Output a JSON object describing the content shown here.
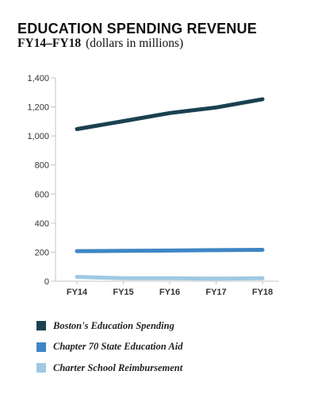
{
  "header": {
    "title": "EDUCATION SPENDING REVENUE",
    "range": "FY14–FY18",
    "units": "(dollars in millions)"
  },
  "chart_data": {
    "type": "line",
    "title": "EDUCATION SPENDING REVENUE",
    "subtitle": "FY14–FY18 (dollars in millions)",
    "xlabel": "",
    "ylabel": "",
    "categories": [
      "FY14",
      "FY15",
      "FY16",
      "FY17",
      "FY18"
    ],
    "ylim": [
      0,
      1400
    ],
    "yticks": [
      0,
      200,
      400,
      600,
      800,
      1000,
      1200,
      1400
    ],
    "ytick_labels": [
      "0",
      "200",
      "400",
      "600",
      "800",
      "1,000",
      "1,200",
      "1,400"
    ],
    "grid": false,
    "legend_position": "bottom",
    "series": [
      {
        "name": "Boston's Education Spending",
        "color": "#1b4150",
        "values": [
          1047,
          1102,
          1158,
          1196,
          1253
        ]
      },
      {
        "name": "Chapter 70 State Education Aid",
        "color": "#3f86c4",
        "values": [
          207,
          209,
          211,
          214,
          216
        ]
      },
      {
        "name": "Charter School Reimbursement",
        "color": "#9fc9e3",
        "values": [
          30,
          20,
          20,
          18,
          20
        ]
      }
    ]
  }
}
